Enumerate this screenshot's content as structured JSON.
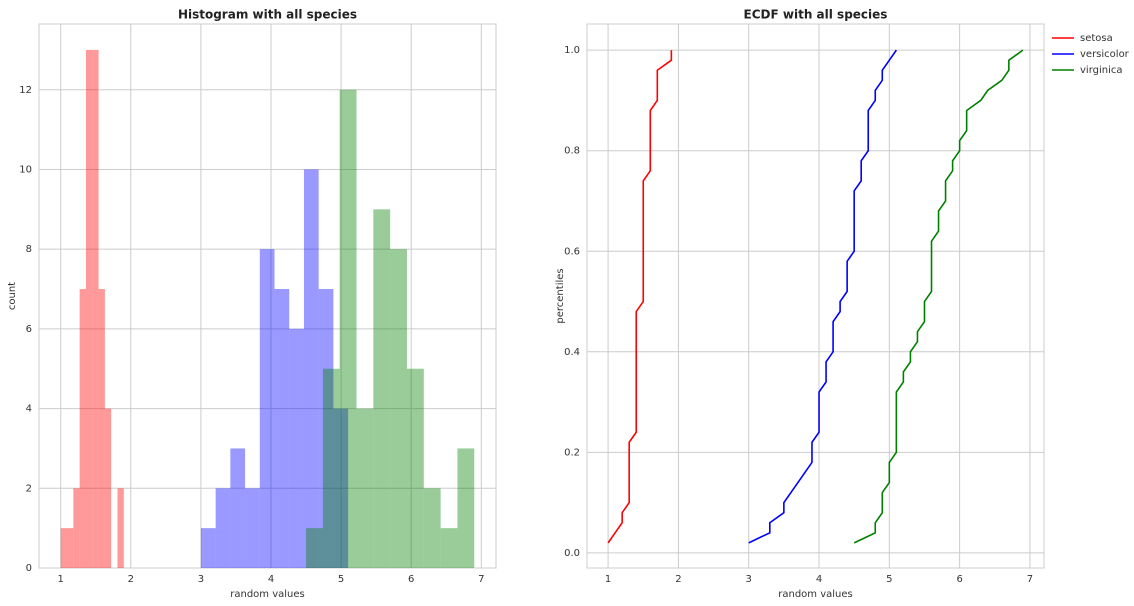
{
  "chart_data": [
    {
      "type": "histogram",
      "title": "Histogram with all species",
      "xlabel": "random values",
      "ylabel": "count",
      "xlim": [
        0.69,
        7.21
      ],
      "ylim": [
        0,
        13.65
      ],
      "xticks": [
        1,
        2,
        3,
        4,
        5,
        6,
        7
      ],
      "yticks": [
        0,
        2,
        4,
        6,
        8,
        10,
        12
      ],
      "grid": true,
      "opacity": 0.4,
      "series": [
        {
          "name": "setosa",
          "color": "red",
          "bins": [
            1.0,
            1.09,
            1.18,
            1.27,
            1.36,
            1.45,
            1.54,
            1.63,
            1.72,
            1.81,
            1.9
          ],
          "values": [
            1,
            1,
            2,
            7,
            13,
            13,
            7,
            4,
            0,
            2
          ]
        },
        {
          "name": "versicolor",
          "color": "blue",
          "bins": [
            3.0,
            3.21,
            3.42,
            3.63,
            3.84,
            4.05,
            4.26,
            4.47,
            4.68,
            4.89,
            5.1
          ],
          "values": [
            1,
            2,
            3,
            2,
            8,
            7,
            6,
            10,
            7,
            4
          ]
        },
        {
          "name": "virginica",
          "color": "green",
          "bins": [
            4.5,
            4.74,
            4.98,
            5.22,
            5.46,
            5.7,
            5.94,
            6.18,
            6.42,
            6.66,
            6.9
          ],
          "values": [
            1,
            5,
            12,
            4,
            9,
            8,
            5,
            2,
            1,
            3
          ]
        }
      ]
    },
    {
      "type": "line",
      "title": "ECDF with all species",
      "xlabel": "random values",
      "ylabel": "percentiles",
      "xlim": [
        0.7,
        7.2
      ],
      "ylim": [
        -0.03,
        1.052
      ],
      "xticks": [
        1,
        2,
        3,
        4,
        5,
        6,
        7
      ],
      "yticks": [
        {
          "value": 0,
          "label": "0.0"
        },
        0.2,
        0.4,
        0.6,
        0.8,
        {
          "value": 1,
          "label": "1.0"
        }
      ],
      "grid": true,
      "legend": "outside upper right",
      "series": [
        {
          "name": "setosa",
          "color": "red",
          "x": [
            1.0,
            1.1,
            1.2,
            1.2,
            1.3,
            1.3,
            1.3,
            1.3,
            1.3,
            1.3,
            1.3,
            1.4,
            1.4,
            1.4,
            1.4,
            1.4,
            1.4,
            1.4,
            1.4,
            1.4,
            1.4,
            1.4,
            1.4,
            1.4,
            1.5,
            1.5,
            1.5,
            1.5,
            1.5,
            1.5,
            1.5,
            1.5,
            1.5,
            1.5,
            1.5,
            1.5,
            1.5,
            1.6,
            1.6,
            1.6,
            1.6,
            1.6,
            1.6,
            1.6,
            1.7,
            1.7,
            1.7,
            1.7,
            1.9,
            1.9
          ],
          "values": [
            0.02,
            0.04,
            0.06,
            0.08,
            0.1,
            0.12,
            0.14,
            0.16,
            0.18,
            0.2,
            0.22,
            0.24,
            0.26,
            0.28,
            0.3,
            0.32,
            0.34,
            0.36,
            0.38,
            0.4,
            0.42,
            0.44,
            0.46,
            0.48,
            0.5,
            0.52,
            0.54,
            0.56,
            0.58,
            0.6,
            0.62,
            0.64,
            0.66,
            0.68,
            0.7,
            0.72,
            0.74,
            0.76,
            0.78,
            0.8,
            0.82,
            0.84,
            0.86,
            0.88,
            0.9,
            0.92,
            0.94,
            0.96,
            0.98,
            1.0
          ]
        },
        {
          "name": "versicolor",
          "color": "blue",
          "x": [
            3.0,
            3.3,
            3.3,
            3.5,
            3.5,
            3.6,
            3.7,
            3.8,
            3.9,
            3.9,
            3.9,
            4.0,
            4.0,
            4.0,
            4.0,
            4.0,
            4.1,
            4.1,
            4.1,
            4.2,
            4.2,
            4.2,
            4.2,
            4.3,
            4.3,
            4.4,
            4.4,
            4.4,
            4.4,
            4.5,
            4.5,
            4.5,
            4.5,
            4.5,
            4.5,
            4.5,
            4.6,
            4.6,
            4.6,
            4.7,
            4.7,
            4.7,
            4.7,
            4.7,
            4.8,
            4.8,
            4.9,
            4.9,
            5.0,
            5.1
          ],
          "values": [
            0.02,
            0.04,
            0.06,
            0.08,
            0.1,
            0.12,
            0.14,
            0.16,
            0.18,
            0.2,
            0.22,
            0.24,
            0.26,
            0.28,
            0.3,
            0.32,
            0.34,
            0.36,
            0.38,
            0.4,
            0.42,
            0.44,
            0.46,
            0.48,
            0.5,
            0.52,
            0.54,
            0.56,
            0.58,
            0.6,
            0.62,
            0.64,
            0.66,
            0.68,
            0.7,
            0.72,
            0.74,
            0.76,
            0.78,
            0.8,
            0.82,
            0.84,
            0.86,
            0.88,
            0.9,
            0.92,
            0.94,
            0.96,
            0.98,
            1.0
          ]
        },
        {
          "name": "virginica",
          "color": "green",
          "x": [
            4.5,
            4.8,
            4.8,
            4.9,
            4.9,
            4.9,
            5.0,
            5.0,
            5.0,
            5.1,
            5.1,
            5.1,
            5.1,
            5.1,
            5.1,
            5.1,
            5.2,
            5.2,
            5.3,
            5.3,
            5.4,
            5.4,
            5.5,
            5.5,
            5.5,
            5.6,
            5.6,
            5.6,
            5.6,
            5.6,
            5.6,
            5.7,
            5.7,
            5.7,
            5.8,
            5.8,
            5.8,
            5.9,
            5.9,
            6.0,
            6.0,
            6.1,
            6.1,
            6.1,
            6.3,
            6.4,
            6.6,
            6.7,
            6.7,
            6.9
          ],
          "values": [
            0.02,
            0.04,
            0.06,
            0.08,
            0.1,
            0.12,
            0.14,
            0.16,
            0.18,
            0.2,
            0.22,
            0.24,
            0.26,
            0.28,
            0.3,
            0.32,
            0.34,
            0.36,
            0.38,
            0.4,
            0.42,
            0.44,
            0.46,
            0.48,
            0.5,
            0.52,
            0.54,
            0.56,
            0.58,
            0.6,
            0.62,
            0.64,
            0.66,
            0.68,
            0.7,
            0.72,
            0.74,
            0.76,
            0.78,
            0.8,
            0.82,
            0.84,
            0.86,
            0.88,
            0.9,
            0.92,
            0.94,
            0.96,
            0.98,
            1.0
          ]
        }
      ]
    }
  ]
}
